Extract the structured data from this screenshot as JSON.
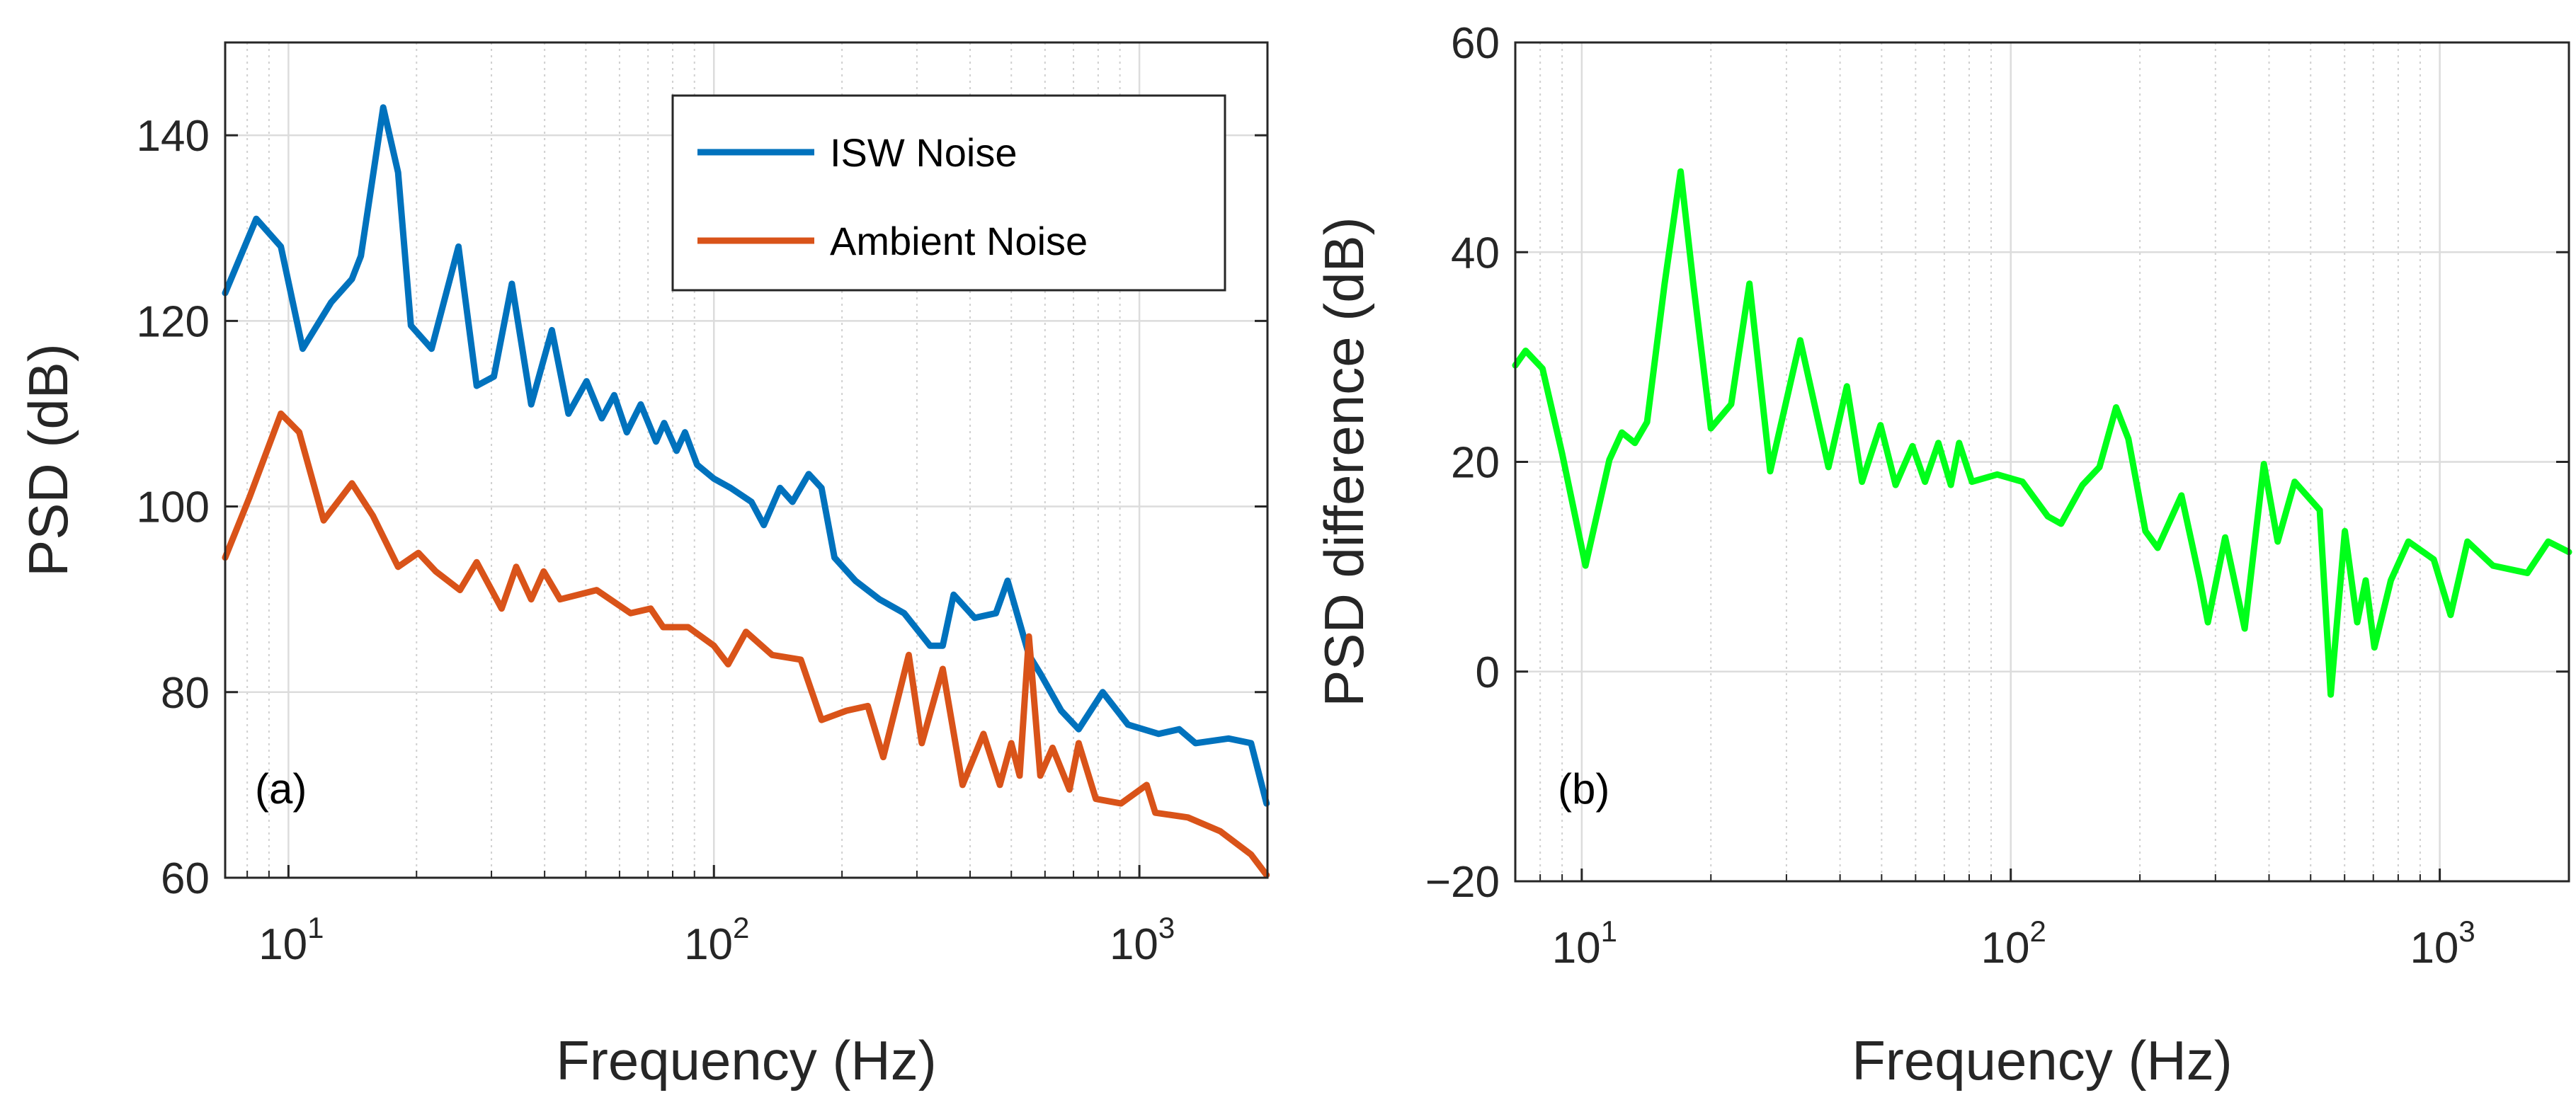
{
  "chart_data": [
    {
      "type": "line",
      "panel_label": "(a)",
      "xlabel": "Frequency (Hz)",
      "ylabel": "PSD (dB)",
      "xscale": "log",
      "xlim": [
        7.1,
        2000
      ],
      "ylim": [
        60,
        150
      ],
      "yticks": [
        60,
        80,
        100,
        120,
        140
      ],
      "xticks": [
        10,
        100,
        1000
      ],
      "xtick_labels": [
        {
          "base": "10",
          "exp": "1"
        },
        {
          "base": "10",
          "exp": "2"
        },
        {
          "base": "10",
          "exp": "3"
        }
      ],
      "grid": true,
      "legend_position": "top-right",
      "series": [
        {
          "name": "ISW Noise",
          "color": "#0072bd",
          "x": [
            7.1,
            8.4,
            9.6,
            10.8,
            12.6,
            14.1,
            14.8,
            16.7,
            18.1,
            19.4,
            21.7,
            25.1,
            27.7,
            30.4,
            33.5,
            37.2,
            41.6,
            45.5,
            50.2,
            54.5,
            58.3,
            62.4,
            67.3,
            73.1,
            76.4,
            81.7,
            85.5,
            91.3,
            100,
            109.5,
            122.5,
            131,
            143,
            153,
            167,
            179,
            192,
            215,
            245,
            280,
            322,
            345,
            366,
            410,
            460,
            490,
            550,
            585,
            655,
            720,
            820,
            940,
            1110,
            1240,
            1355,
            1620,
            1830,
            1990
          ],
          "y": [
            123,
            131,
            128,
            117,
            122,
            124.5,
            127,
            143,
            136,
            119.5,
            117,
            128,
            113,
            114,
            124,
            111,
            119,
            110,
            113.5,
            109.5,
            112,
            108,
            111,
            107,
            109,
            106,
            108,
            104.5,
            103,
            102,
            100.5,
            98,
            102,
            100.5,
            103.5,
            102,
            94.5,
            92,
            90,
            88.5,
            85,
            85,
            90.5,
            88,
            88.5,
            92,
            84,
            82,
            78,
            76,
            80,
            76.5,
            75.5,
            76,
            74.5,
            75,
            74.5,
            68
          ]
        },
        {
          "name": "Ambient Noise",
          "color": "#d95319",
          "x": [
            7.1,
            8.1,
            9.6,
            10.6,
            12.1,
            14.1,
            15.8,
            18.1,
            20.2,
            22.2,
            25.3,
            27.7,
            31.7,
            34.3,
            37.2,
            39.8,
            43.5,
            53,
            63.7,
            71,
            76,
            87,
            100,
            108,
            119,
            137,
            160,
            179,
            205,
            230,
            250,
            287,
            308,
            345,
            384,
            430,
            470,
            500,
            523,
            550,
            585,
            625,
            685,
            720,
            790,
            905,
            1040,
            1090,
            1300,
            1550,
            1830,
            1990
          ],
          "y": [
            94.5,
            101,
            110,
            108,
            98.5,
            102.5,
            99,
            93.5,
            95,
            93,
            91,
            94,
            89,
            93.5,
            90,
            93,
            90,
            91,
            88.5,
            89,
            87,
            87,
            85,
            83,
            86.5,
            84,
            83.5,
            77,
            78,
            78.5,
            73,
            84,
            74.5,
            82.5,
            70,
            75.5,
            70,
            74.5,
            71,
            86,
            71,
            74,
            69.5,
            74.5,
            68.5,
            68,
            70,
            67,
            66.5,
            65,
            62.5,
            60.3
          ]
        }
      ]
    },
    {
      "type": "line",
      "panel_label": "(b)",
      "xlabel": "Frequency (Hz)",
      "ylabel": "PSD difference (dB)",
      "xscale": "log",
      "xlim": [
        7.0,
        2000
      ],
      "ylim": [
        -20,
        60
      ],
      "yticks": [
        -20,
        0,
        20,
        40,
        60
      ],
      "ytick_labels": [
        "−20",
        "0",
        "20",
        "40",
        "60"
      ],
      "xticks": [
        10,
        100,
        1000
      ],
      "xtick_labels": [
        {
          "base": "10",
          "exp": "1"
        },
        {
          "base": "10",
          "exp": "2"
        },
        {
          "base": "10",
          "exp": "3"
        }
      ],
      "grid": true,
      "series": [
        {
          "name": "PSD difference",
          "color": "#00ff1a",
          "x": [
            7.0,
            7.4,
            8.1,
            9.0,
            10.2,
            11.6,
            12.4,
            13.3,
            14.2,
            15.6,
            17.0,
            18.2,
            20.0,
            22.3,
            24.6,
            27.5,
            32.3,
            37.6,
            41.5,
            45.0,
            49.7,
            53.9,
            59.0,
            63.1,
            67.8,
            72.5,
            75.8,
            81.2,
            93.0,
            106.5,
            122,
            131,
            147,
            161,
            176,
            188,
            206,
            220,
            250,
            276,
            288,
            316,
            351,
            389,
            419,
            459,
            525,
            557,
            601,
            642,
            672,
            704,
            769,
            845,
            968,
            1060,
            1160,
            1330,
            1600,
            1790,
            2000
          ],
          "y": [
            29.2,
            30.6,
            28.9,
            20.8,
            10.1,
            20.2,
            22.8,
            21.8,
            23.8,
            37,
            47.7,
            37,
            23.2,
            25.5,
            37,
            19.1,
            31.6,
            19.5,
            27.2,
            18.1,
            23.5,
            17.8,
            21.5,
            18.1,
            21.8,
            17.8,
            21.8,
            18.1,
            18.8,
            18.1,
            14.8,
            14.1,
            17.8,
            19.5,
            25.2,
            22.2,
            13.4,
            11.8,
            16.8,
            8.7,
            4.7,
            12.8,
            4.1,
            19.8,
            12.4,
            18.1,
            15.4,
            -2.2,
            13.4,
            4.7,
            8.7,
            2.3,
            8.7,
            12.4,
            10.7,
            5.4,
            12.4,
            10.1,
            9.4,
            12.4,
            11.4
          ]
        }
      ]
    }
  ]
}
